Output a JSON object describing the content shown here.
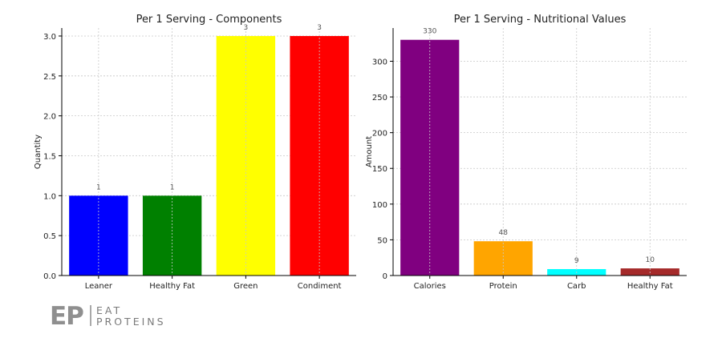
{
  "chart_data": [
    {
      "type": "bar",
      "title": "Per 1 Serving - Components",
      "xlabel": "",
      "ylabel": "Quantity",
      "categories": [
        "Leaner",
        "Healthy Fat",
        "Green",
        "Condiment"
      ],
      "values": [
        1,
        1,
        3,
        3
      ],
      "data_labels": [
        "1",
        "1",
        "3",
        "3"
      ],
      "colors": [
        "#0000ff",
        "#008000",
        "#ffff00",
        "#ff0000"
      ],
      "ylim": [
        0,
        3.1
      ],
      "yticks": [
        0.0,
        0.5,
        1.0,
        1.5,
        2.0,
        2.5,
        3.0
      ],
      "ytick_labels": [
        "0.0",
        "0.5",
        "1.0",
        "1.5",
        "2.0",
        "2.5",
        "3.0"
      ],
      "grid": true
    },
    {
      "type": "bar",
      "title": "Per 1 Serving - Nutritional Values",
      "xlabel": "",
      "ylabel": "Amount",
      "categories": [
        "Calories",
        "Protein",
        "Carb",
        "Healthy Fat"
      ],
      "values": [
        330,
        48,
        9,
        10
      ],
      "data_labels": [
        "330",
        "48",
        "9",
        "10"
      ],
      "colors": [
        "#800080",
        "#ffa500",
        "#00ffff",
        "#a52a2a"
      ],
      "ylim": [
        0,
        346.5
      ],
      "yticks": [
        0,
        50,
        100,
        150,
        200,
        250,
        300
      ],
      "ytick_labels": [
        "0",
        "50",
        "100",
        "150",
        "200",
        "250",
        "300"
      ],
      "grid": true
    }
  ],
  "logo": {
    "mark": "EP",
    "line1": "EAT",
    "line2": "PROTEINS"
  }
}
